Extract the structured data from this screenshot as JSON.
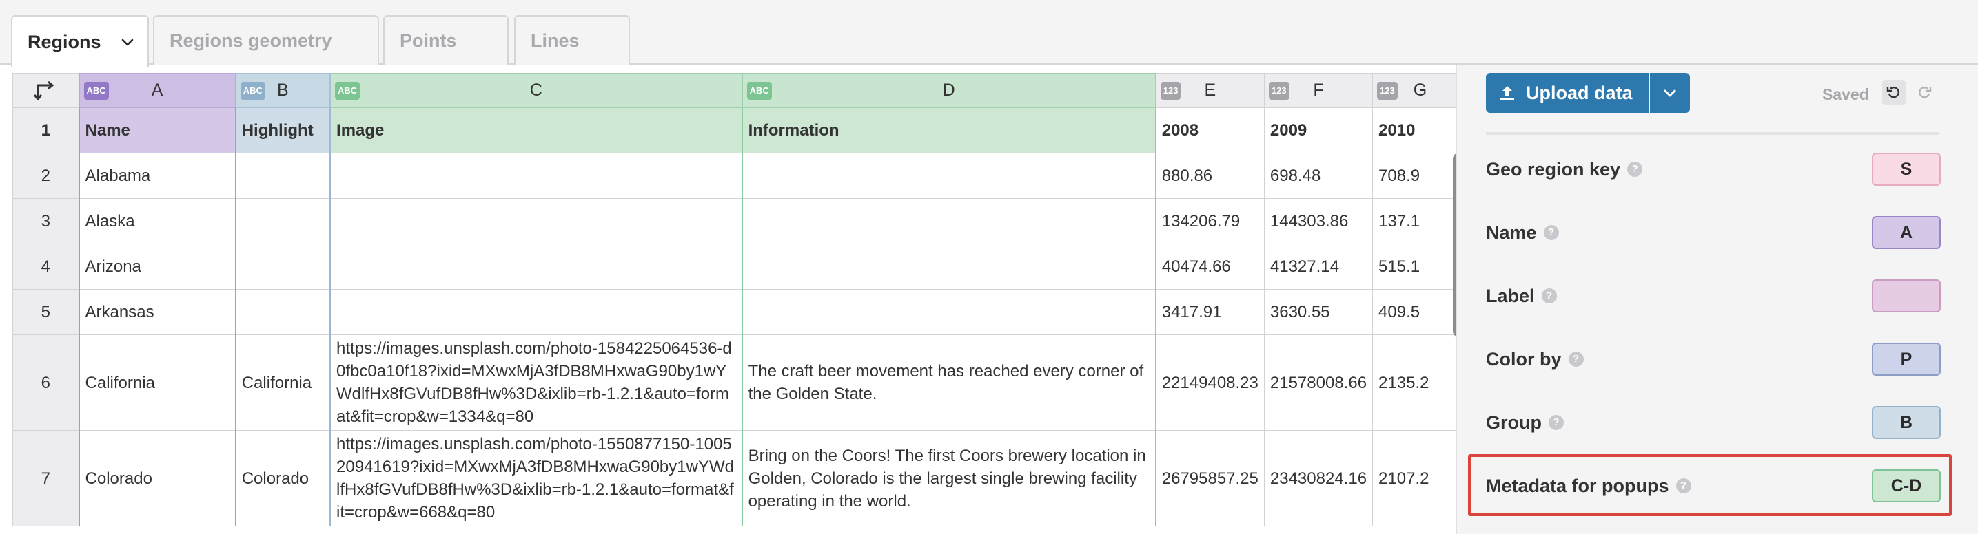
{
  "tabs": [
    {
      "label": "Regions",
      "active": true
    },
    {
      "label": "Regions geometry",
      "active": false
    },
    {
      "label": "Points",
      "active": false
    },
    {
      "label": "Lines",
      "active": false
    }
  ],
  "sheet": {
    "type_badges": {
      "text": "ABC",
      "number": "123"
    },
    "col_letters": [
      "A",
      "B",
      "C",
      "D",
      "E",
      "F",
      "G"
    ],
    "header_row": {
      "num": "1",
      "cells": [
        "Name",
        "Highlight",
        "Image",
        "Information",
        "2008",
        "2009",
        "2010"
      ]
    },
    "rows": [
      {
        "num": "2",
        "cells": [
          "Alabama",
          "",
          "",
          "",
          "880.86",
          "698.48",
          "708.9"
        ]
      },
      {
        "num": "3",
        "cells": [
          "Alaska",
          "",
          "",
          "",
          "134206.79",
          "144303.86",
          "137.1"
        ]
      },
      {
        "num": "4",
        "cells": [
          "Arizona",
          "",
          "",
          "",
          "40474.66",
          "41327.14",
          "515.1"
        ]
      },
      {
        "num": "5",
        "cells": [
          "Arkansas",
          "",
          "",
          "",
          "3417.91",
          "3630.55",
          "409.5"
        ]
      },
      {
        "num": "6",
        "cells": [
          "California",
          "California",
          "https://images.unsplash.com/photo-1584225064536-d0fbc0a10f18?ixid=MXwxMjA3fDB8MHxwaG90by1wYWdlfHx8fGVufDB8fHw%3D&ixlib=rb-1.2.1&auto=format&fit=crop&w=1334&q=80",
          "The craft beer movement has reached every corner of the Golden State.",
          "22149408.23",
          "21578008.66",
          "2135.2"
        ]
      },
      {
        "num": "7",
        "cells": [
          "Colorado",
          "Colorado",
          "https://images.unsplash.com/photo-1550877150-100520941619?ixid=MXwxMjA3fDB8MHxwaG90by1wYWdlfHx8fGVufDB8fHw%3D&ixlib=rb-1.2.1&auto=format&fit=crop&w=668&q=80",
          "Bring on the Coors! The first Coors brewery location in Golden, Colorado is the largest single brewing facility operating in the world.",
          "26795857.25",
          "23430824.16",
          "2107.2"
        ]
      }
    ]
  },
  "panel": {
    "upload_label": "Upload data",
    "saved_label": "Saved",
    "bindings": [
      {
        "label": "Geo region key",
        "value": "S",
        "bg": "#f8dbe4",
        "border": "#e8aabd"
      },
      {
        "label": "Name",
        "value": "A",
        "bg": "#d4c7e8",
        "border": "#9b85c9"
      },
      {
        "label": "Label",
        "value": "",
        "bg": "#e6cce3",
        "border": "#c99cc4"
      },
      {
        "label": "Color by",
        "value": "P",
        "bg": "#ccd3ea",
        "border": "#8e9cc8"
      },
      {
        "label": "Group",
        "value": "B",
        "bg": "#cfdde8",
        "border": "#93b2ca"
      },
      {
        "label": "Metadata for popups",
        "value": "C-D",
        "bg": "#cde7d3",
        "border": "#7fc496"
      }
    ]
  },
  "colors": {
    "accent": "#2d79ad",
    "highlight": "#d9453a"
  }
}
